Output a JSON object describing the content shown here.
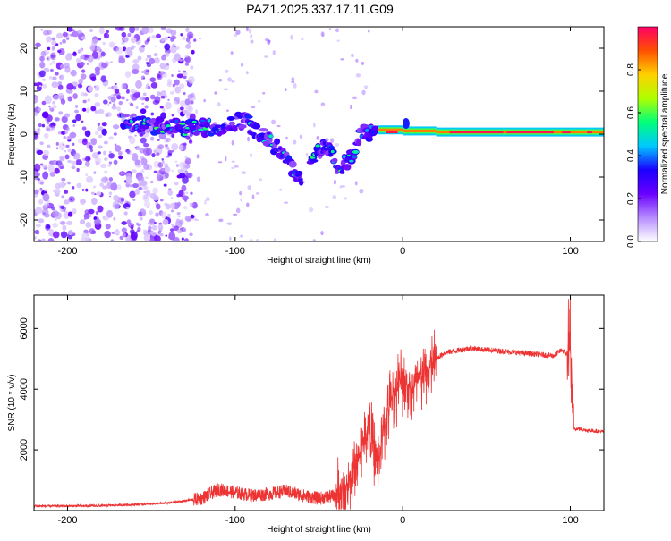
{
  "title": "PAZ1.2025.337.17.11.G09",
  "chart_data": [
    {
      "type": "heatmap",
      "title": "PAZ1.2025.337.17.11.G09",
      "xlabel": "Height of straight line (km)",
      "ylabel": "Frequency (Hz)",
      "xlim": [
        -220,
        120
      ],
      "ylim": [
        -25,
        25
      ],
      "xticks": [
        -200,
        -100,
        0,
        100
      ],
      "yticks": [
        -20,
        -10,
        0,
        10,
        20
      ],
      "xtick_labels": [
        "-200",
        "-100",
        "0",
        "100"
      ],
      "ytick_labels": [
        "-20",
        "-10",
        "0",
        "10",
        "20"
      ],
      "colorbar": {
        "label": "Normalized spectral amplitude",
        "range": [
          0,
          1
        ],
        "ticks": [
          0.0,
          0.2,
          0.4,
          0.6,
          0.8
        ],
        "tick_labels": [
          "0.0",
          "0.2",
          "0.4",
          "0.6",
          "0.8"
        ],
        "colors": [
          "#ffffff",
          "#b68cff",
          "#6a00ff",
          "#1a00ff",
          "#00c8ff",
          "#00ff7a",
          "#b0ff00",
          "#ffd000",
          "#ff5000",
          "#ff0066"
        ]
      },
      "features": {
        "noise_region_x": [
          -220,
          -130
        ],
        "main_track": [
          {
            "x": -168,
            "f": 3
          },
          {
            "x": -150,
            "f": 2
          },
          {
            "x": -130,
            "f": 1.5
          },
          {
            "x": -110,
            "f": 1.5
          },
          {
            "x": -95,
            "f": 3.5
          },
          {
            "x": -85,
            "f": 0
          },
          {
            "x": -75,
            "f": -3
          },
          {
            "x": -60,
            "f": -11
          }
        ],
        "second_track": [
          {
            "x": -55,
            "f": -5
          },
          {
            "x": -45,
            "f": -3
          },
          {
            "x": -38,
            "f": -8
          },
          {
            "x": -30,
            "f": -5
          },
          {
            "x": -25,
            "f": 0
          },
          {
            "x": -15,
            "f": 1
          },
          {
            "x": 0,
            "f": 1
          },
          {
            "x": 20,
            "f": 0.5
          },
          {
            "x": 60,
            "f": 0.5
          },
          {
            "x": 100,
            "f": 0.5
          },
          {
            "x": 120,
            "f": 0.5
          }
        ]
      }
    },
    {
      "type": "line",
      "xlabel": "Height of straight line (km)",
      "ylabel": "SNR (10 * v/v)",
      "xlim": [
        -220,
        120
      ],
      "ylim": [
        0,
        7100
      ],
      "xticks": [
        -200,
        -100,
        0,
        100
      ],
      "yticks": [
        2000,
        4000,
        6000
      ],
      "xtick_labels": [
        "-200",
        "-100",
        "0",
        "100"
      ],
      "ytick_labels": [
        "2000",
        "4000",
        "6000"
      ],
      "color": "#ee3333",
      "x": [
        -220,
        -200,
        -180,
        -160,
        -140,
        -120,
        -110,
        -100,
        -90,
        -80,
        -70,
        -60,
        -50,
        -40,
        -35,
        -30,
        -25,
        -20,
        -15,
        -10,
        -5,
        0,
        5,
        10,
        15,
        20,
        25,
        30,
        40,
        50,
        60,
        70,
        80,
        90,
        95,
        100,
        102,
        104,
        110,
        120
      ],
      "y": [
        150,
        150,
        160,
        200,
        250,
        400,
        700,
        600,
        500,
        550,
        650,
        500,
        400,
        500,
        600,
        1200,
        2000,
        2800,
        1500,
        3000,
        4000,
        4300,
        4000,
        4300,
        4600,
        5000,
        5200,
        5250,
        5350,
        5300,
        5250,
        5200,
        5150,
        5100,
        5300,
        5000,
        2700,
        2700,
        2650,
        2600
      ]
    }
  ]
}
